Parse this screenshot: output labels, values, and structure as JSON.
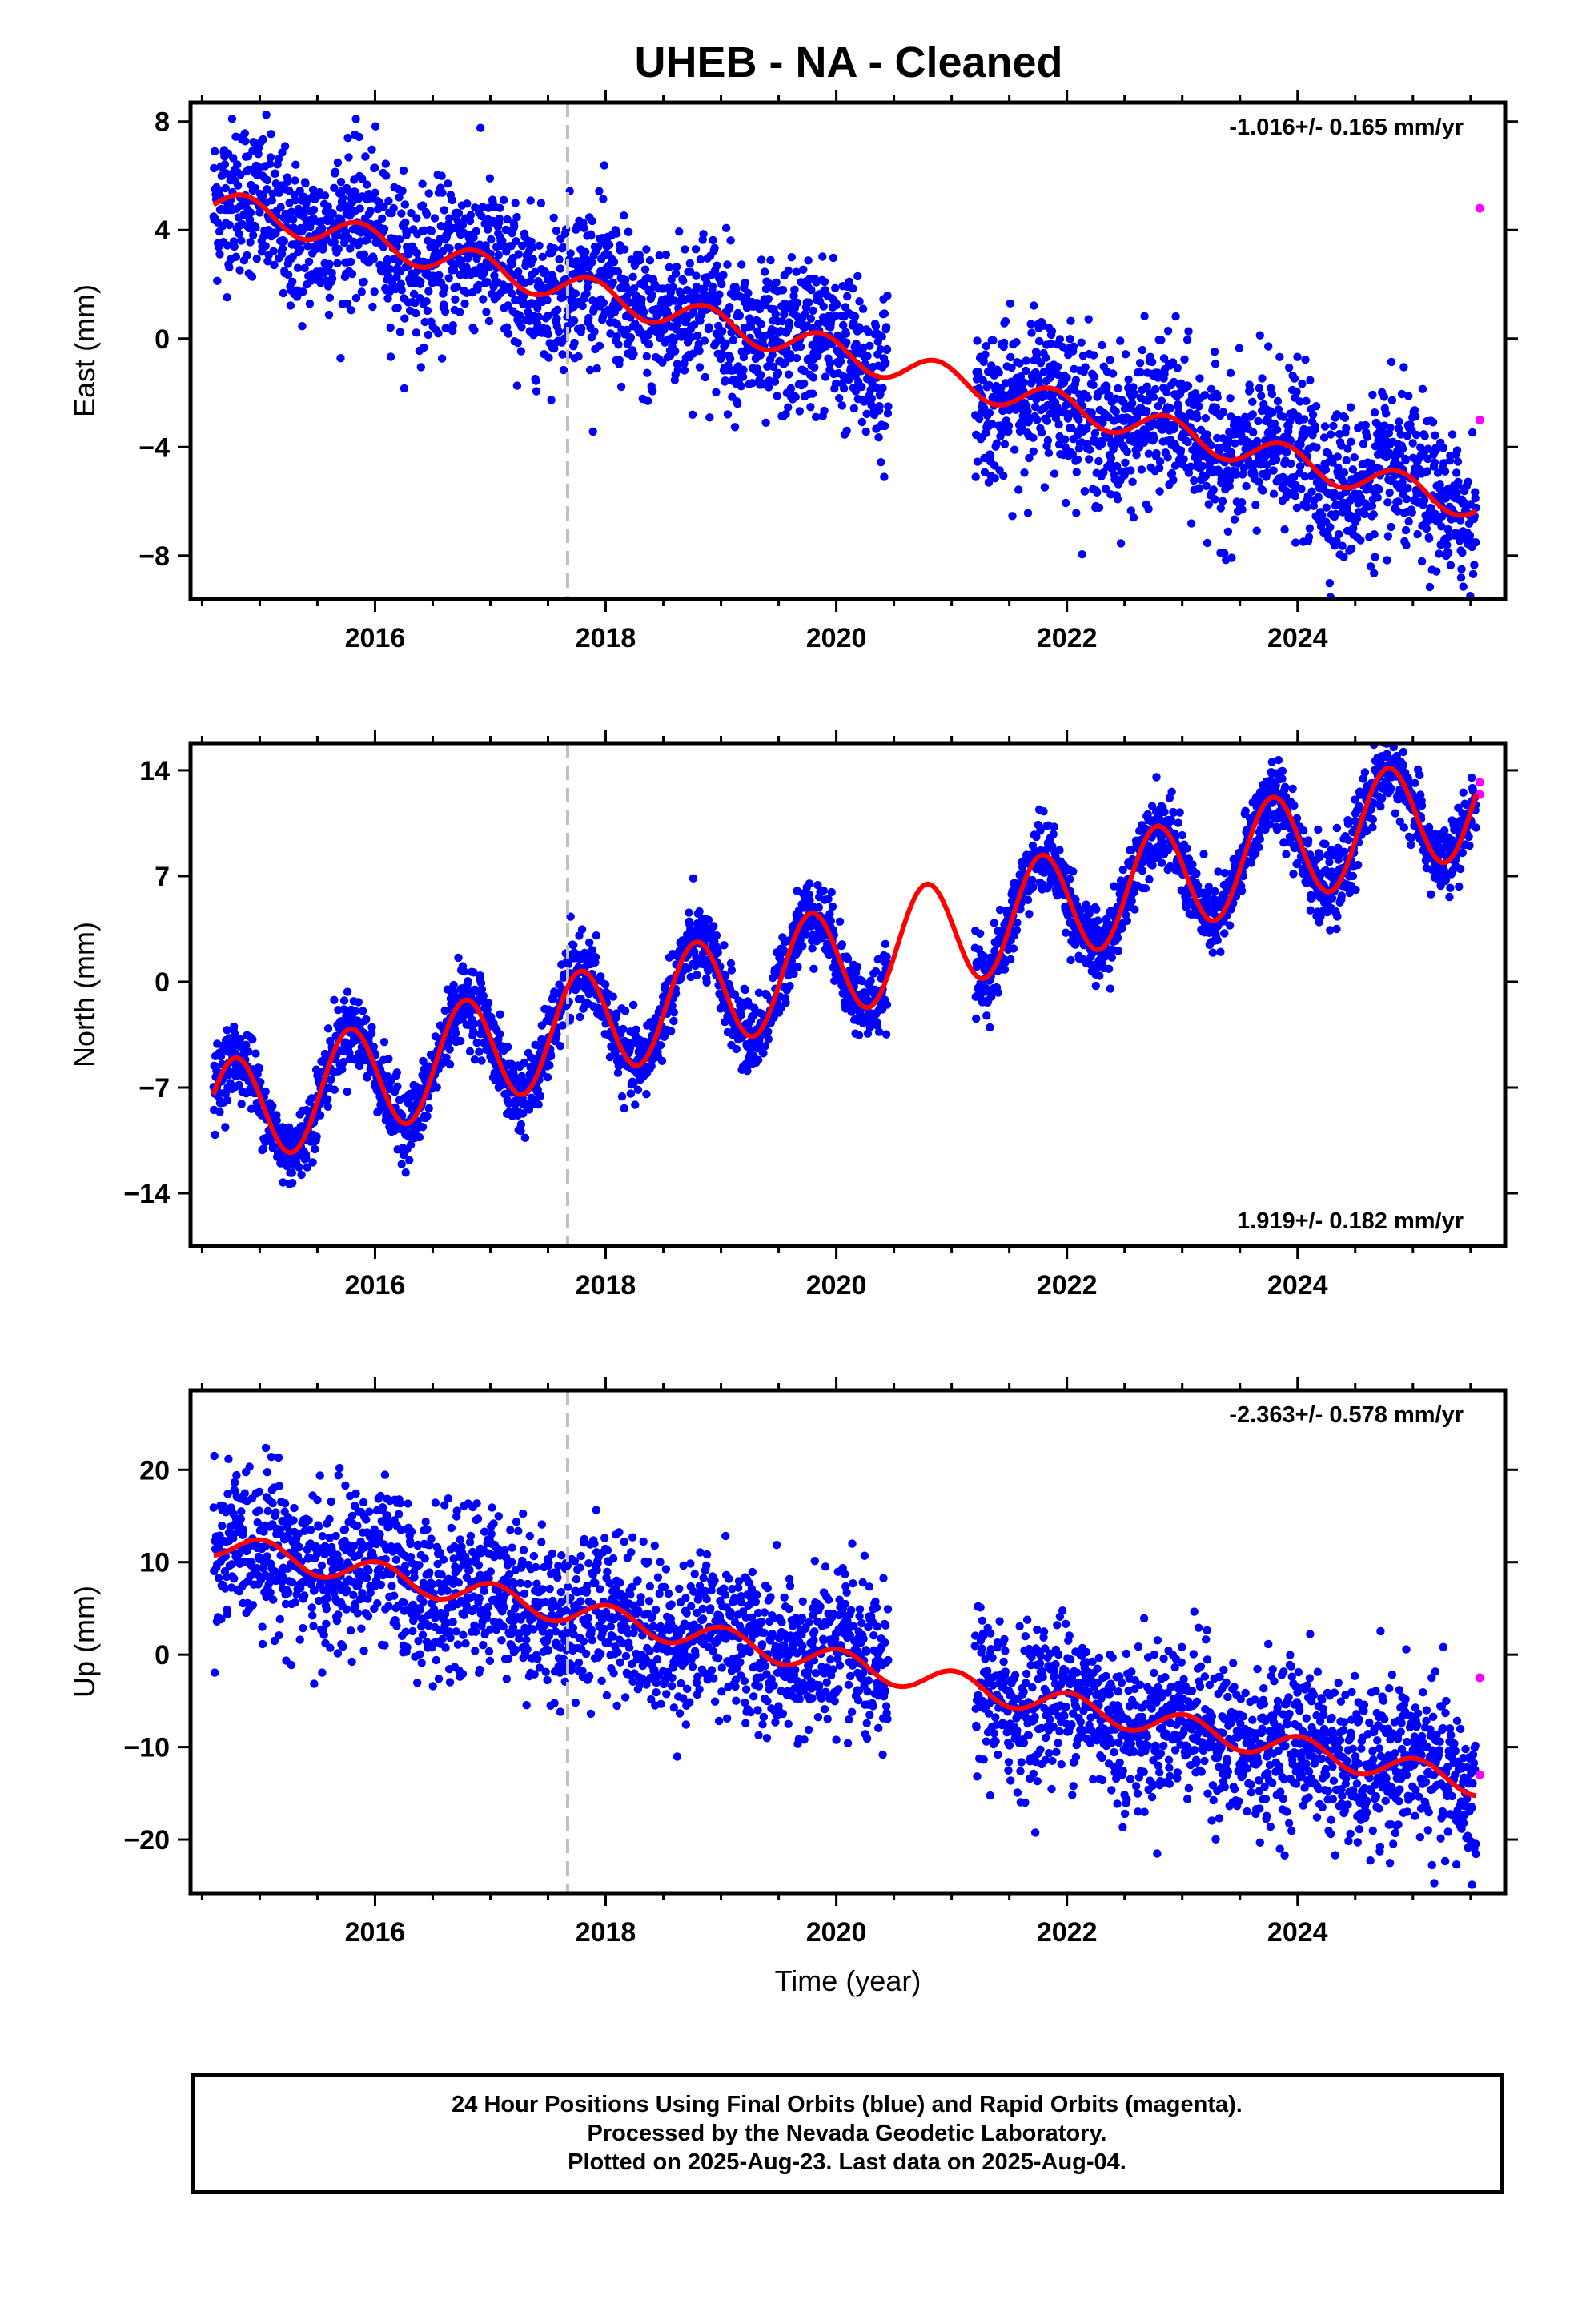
{
  "title": "UHEB  - NA - Cleaned",
  "footer": {
    "line1": "24 Hour Positions Using Final Orbits (blue) and Rapid Orbits (magenta).",
    "line2": "Processed by the Nevada Geodetic Laboratory.",
    "line3": "Plotted on 2025-Aug-23. Last data on 2025-Aug-04."
  },
  "colors": {
    "final_orbits": "#0000ff",
    "rapid_orbits": "#ff00ff",
    "model_fit": "#ff0000",
    "reference_line": "#c0c0c0"
  },
  "chart_data": [
    {
      "type": "scatter",
      "panel": "east",
      "ylabel": "East (mm)",
      "xlabel": "",
      "rate_text": "-1.016+/- 0.165 mm/yr",
      "xlim": [
        2014.4,
        2025.8
      ],
      "ylim": [
        -9.6,
        8.7
      ],
      "yticks": [
        8,
        4,
        0,
        -4,
        -8
      ],
      "ytick_labels": [
        "8",
        "4",
        "0",
        "−4",
        "−8"
      ],
      "xticks": [
        2016,
        2018,
        2020,
        2022,
        2024
      ],
      "xtick_labels": [
        "2016",
        "2018",
        "2020",
        "2022",
        "2024"
      ],
      "reference_line_x": 2017.67,
      "trend": {
        "start": 2014.6,
        "end": 2025.55,
        "y_start": 5.0,
        "slope": -1.016
      },
      "seasonal": {
        "amplitude": 0.55,
        "phase_year": 0.62
      },
      "noise_sd": 1.4,
      "gap": [
        2020.45,
        2021.2
      ],
      "rapid_points": [
        {
          "x": 2025.58,
          "y": 4.8
        },
        {
          "x": 2025.58,
          "y": -3.0
        }
      ]
    },
    {
      "type": "scatter",
      "panel": "north",
      "ylabel": "North (mm)",
      "xlabel": "",
      "rate_text": "1.919+/- 0.182 mm/yr",
      "xlim": [
        2014.4,
        2025.8
      ],
      "ylim": [
        -17.5,
        15.8
      ],
      "yticks": [
        14,
        7,
        0,
        -7,
        -14
      ],
      "ytick_labels": [
        "14",
        "7",
        "0",
        "−7",
        "−14"
      ],
      "xticks": [
        2016,
        2018,
        2020,
        2022,
        2024
      ],
      "xtick_labels": [
        "2016",
        "2018",
        "2020",
        "2022",
        "2024"
      ],
      "reference_line_x": 2017.67,
      "trend": {
        "start": 2014.6,
        "end": 2025.55,
        "y_start": -9.0,
        "slope": 1.919
      },
      "seasonal": {
        "amplitude": 3.6,
        "phase_year": 0.53
      },
      "noise_sd": 1.2,
      "gap": [
        2020.45,
        2021.2
      ],
      "rapid_points": [
        {
          "x": 2025.58,
          "y": 13.2
        },
        {
          "x": 2025.58,
          "y": 12.4
        }
      ]
    },
    {
      "type": "scatter",
      "panel": "up",
      "ylabel": "Up (mm)",
      "xlabel": "Time (year)",
      "rate_text": "-2.363+/- 0.578 mm/yr",
      "xlim": [
        2014.4,
        2025.8
      ],
      "ylim": [
        -25.8,
        28.6
      ],
      "yticks": [
        20,
        10,
        0,
        -10,
        -20
      ],
      "ytick_labels": [
        "20",
        "10",
        "0",
        "−10",
        "−20"
      ],
      "xticks": [
        2016,
        2018,
        2020,
        2022,
        2024
      ],
      "xtick_labels": [
        "2016",
        "2018",
        "2020",
        "2022",
        "2024"
      ],
      "reference_line_x": 2017.67,
      "trend": {
        "start": 2014.6,
        "end": 2025.55,
        "y_start": 12.0,
        "slope": -2.363
      },
      "seasonal": {
        "amplitude": 1.4,
        "phase_year": 0.78
      },
      "noise_sd": 4.2,
      "gap": [
        2020.45,
        2021.2
      ],
      "rapid_points": [
        {
          "x": 2025.58,
          "y": -2.5
        },
        {
          "x": 2025.58,
          "y": -13.0
        }
      ]
    }
  ]
}
